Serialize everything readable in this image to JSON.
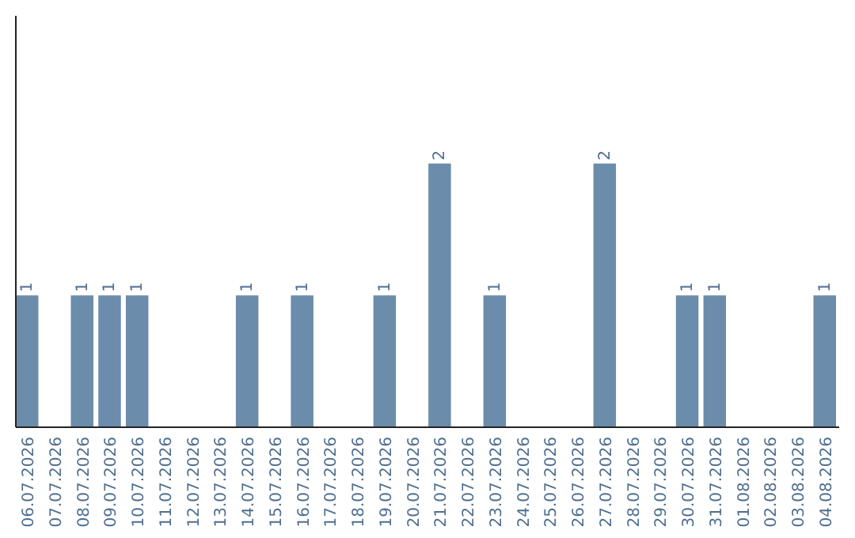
{
  "chart_data": {
    "type": "bar",
    "categories": [
      "06.07.2026",
      "07.07.2026",
      "08.07.2026",
      "09.07.2026",
      "10.07.2026",
      "11.07.2026",
      "12.07.2026",
      "13.07.2026",
      "14.07.2026",
      "15.07.2026",
      "16.07.2026",
      "17.07.2026",
      "18.07.2026",
      "19.07.2026",
      "20.07.2026",
      "21.07.2026",
      "22.07.2026",
      "23.07.2026",
      "24.07.2026",
      "25.07.2026",
      "26.07.2026",
      "27.07.2026",
      "28.07.2026",
      "29.07.2026",
      "30.07.2026",
      "31.07.2026",
      "01.08.2026",
      "02.08.2026",
      "03.08.2026",
      "04.08.2026"
    ],
    "values": [
      1,
      0,
      1,
      1,
      1,
      0,
      0,
      0,
      1,
      0,
      1,
      0,
      0,
      1,
      0,
      2,
      0,
      1,
      0,
      0,
      0,
      2,
      0,
      0,
      1,
      1,
      0,
      0,
      0,
      1
    ],
    "value_labels": [
      "1",
      null,
      "1",
      "1",
      "1",
      null,
      null,
      null,
      "1",
      null,
      "1",
      null,
      null,
      "1",
      null,
      "2",
      null,
      "1",
      null,
      null,
      null,
      "2",
      null,
      null,
      "1",
      "1",
      null,
      null,
      null,
      "1"
    ],
    "color": "#6b8cab"
  }
}
